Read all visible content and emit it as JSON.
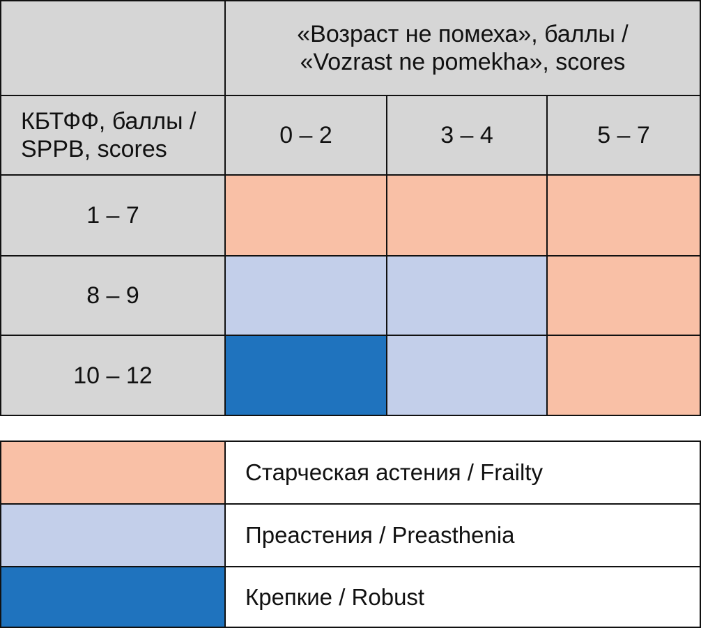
{
  "table": {
    "column_group_header": "«Возраст не помеха», баллы /\n«Vozrast ne pomekha», scores",
    "row_header": "КБТФФ, баллы /\nSPPB, scores",
    "columns": [
      "0 – 2",
      "3 – 4",
      "5 – 7"
    ],
    "rows": [
      {
        "label": "1 – 7",
        "cells": [
          "frailty",
          "frailty",
          "frailty"
        ]
      },
      {
        "label": "8 – 9",
        "cells": [
          "preasthenia",
          "preasthenia",
          "frailty"
        ]
      },
      {
        "label": "10 – 12",
        "cells": [
          "robust",
          "preasthenia",
          "frailty"
        ]
      }
    ]
  },
  "legend": [
    {
      "key": "frailty",
      "label": "Старческая астения / Frailty",
      "color": "#f9c0a6"
    },
    {
      "key": "preasthenia",
      "label": "Преастения / Preasthenia",
      "color": "#c3cfea"
    },
    {
      "key": "robust",
      "label": "Крепкие / Robust",
      "color": "#1f73be"
    }
  ],
  "colors": {
    "header_background": "#d6d6d6",
    "border": "#111111"
  }
}
